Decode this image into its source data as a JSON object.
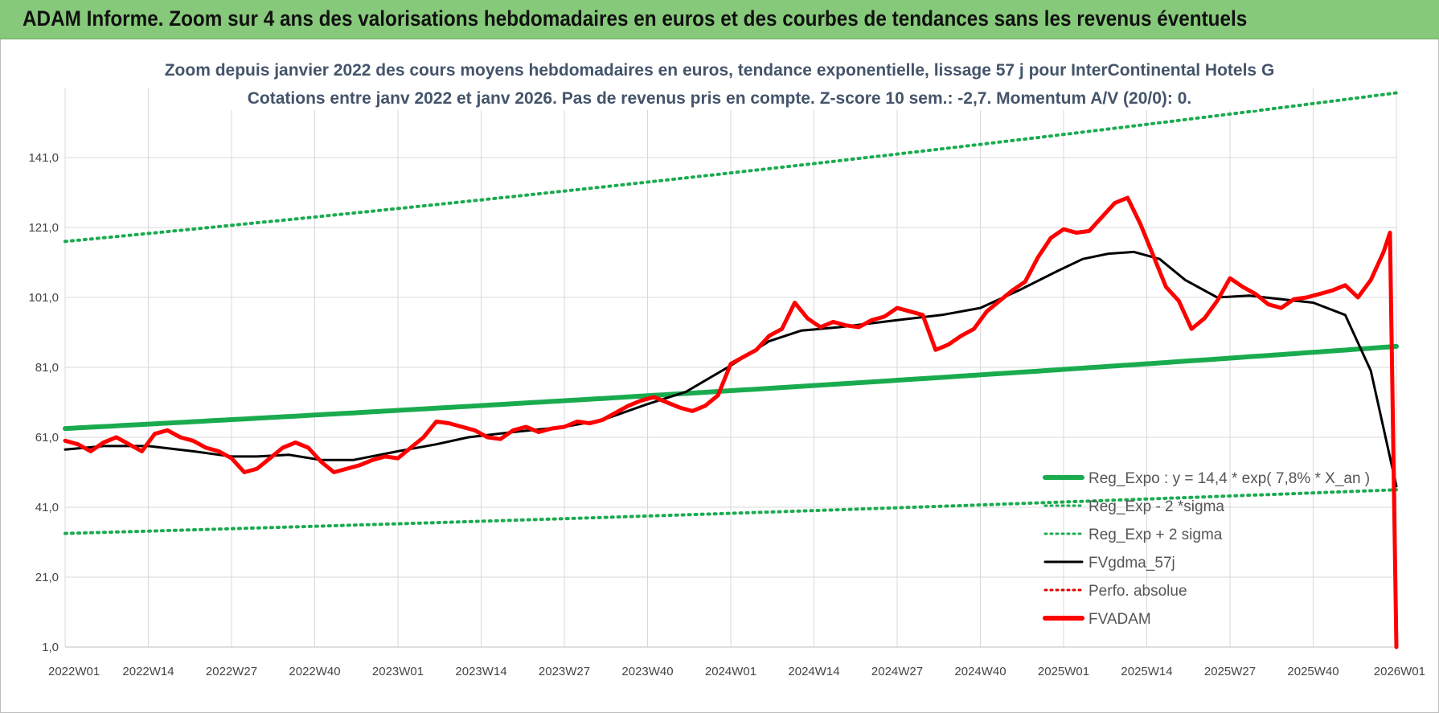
{
  "banner": {
    "title": "ADAM Informe. Zoom sur 4 ans des valorisations hebdomadaires en euros et des courbes de tendances sans les revenus éventuels"
  },
  "colors": {
    "banner_bg": "#86c97a",
    "regression": "#1aab4f",
    "band": "#1aab4f",
    "moving_average": "#000000",
    "perf": "#e00000",
    "fvadam": "#ff0000"
  },
  "chart_data": {
    "type": "line",
    "title_lines": [
      "Zoom depuis janvier 2022 des cours moyens hebdomadaires en euros, tendance exponentielle, lissage 57 j pour InterContinental Hotels G",
      "Cotations entre janv 2022 et janv 2026. Pas de revenus pris en compte. Z-score 10 sem.: -2,7. Momentum A/V (20/0): 0."
    ],
    "x_tick_labels": [
      "2022W01",
      "2022W14",
      "2022W27",
      "2022W40",
      "2023W01",
      "2023W14",
      "2023W27",
      "2023W40",
      "2024W01",
      "2024W14",
      "2024W27",
      "2024W40",
      "2025W01",
      "2025W14",
      "2025W27",
      "2025W40",
      "2026W01"
    ],
    "y_tick_labels": [
      "1,0",
      "21,0",
      "41,0",
      "61,0",
      "81,0",
      "101,0",
      "121,0",
      "141,0"
    ],
    "ylim": [
      1,
      161
    ],
    "y_ticks": [
      1,
      21,
      41,
      61,
      81,
      101,
      121,
      141
    ],
    "x_range_weeks": [
      0,
      208
    ],
    "grid": true,
    "legend_position": "bottom-right",
    "legend": [
      {
        "label": "Reg_Expo : y = 14,4 * exp( 7,8% *  X_an )",
        "style": "solid-thick",
        "color": "#1aab4f"
      },
      {
        "label": "Reg_Exp - 2 *sigma",
        "style": "dotted",
        "color": "#1aab4f"
      },
      {
        "label": "Reg_Exp + 2 sigma",
        "style": "dotted",
        "color": "#1aab4f"
      },
      {
        "label": "FVgdma_57j",
        "style": "solid",
        "color": "#000000"
      },
      {
        "label": "Perfo. absolue",
        "style": "dotted",
        "color": "#e00000"
      },
      {
        "label": "FVADAM",
        "style": "solid-thick",
        "color": "#ff0000"
      }
    ],
    "series": [
      {
        "name": "Reg_Expo : y = 14,4 * exp( 7,8% *  X_an )",
        "style": "solid-thick",
        "x": [
          0,
          208
        ],
        "y": [
          63.5,
          87.0
        ],
        "curve": "exponential"
      },
      {
        "name": "Reg_Exp - 2 *sigma",
        "style": "dotted",
        "x": [
          0,
          208
        ],
        "y": [
          33.5,
          46.0
        ],
        "curve": "exponential"
      },
      {
        "name": "Reg_Exp + 2 sigma",
        "style": "dotted",
        "x": [
          0,
          208
        ],
        "y": [
          117.0,
          159.5
        ],
        "curve": "exponential"
      },
      {
        "name": "FVgdma_57j",
        "style": "solid",
        "x": [
          0,
          6,
          13,
          20,
          26,
          30,
          35,
          40,
          45,
          52,
          58,
          63,
          70,
          78,
          84,
          91,
          97,
          104,
          110,
          115,
          121,
          130,
          137,
          143,
          149,
          155,
          159,
          163,
          167,
          171,
          175,
          180,
          185,
          190,
          195,
          200,
          204,
          208
        ],
        "y": [
          57.5,
          58.5,
          58.5,
          57.0,
          55.5,
          55.5,
          56.0,
          54.5,
          54.5,
          57.0,
          59.0,
          61.0,
          62.5,
          64.0,
          66.0,
          70.5,
          74.0,
          81.5,
          88.5,
          91.5,
          92.5,
          94.5,
          96.0,
          98.0,
          103.0,
          108.5,
          112.0,
          113.5,
          114.0,
          112.0,
          106.0,
          101.0,
          101.5,
          100.5,
          99.5,
          96.0,
          80.0,
          47.0
        ]
      },
      {
        "name": "FVADAM",
        "style": "solid-thick",
        "x": [
          0,
          2,
          4,
          6,
          8,
          10,
          12,
          14,
          16,
          18,
          20,
          22,
          24,
          26,
          28,
          30,
          32,
          34,
          36,
          38,
          40,
          42,
          44,
          46,
          48,
          50,
          52,
          54,
          56,
          58,
          60,
          62,
          64,
          66,
          68,
          70,
          72,
          74,
          76,
          78,
          80,
          82,
          84,
          86,
          88,
          90,
          92,
          94,
          96,
          98,
          100,
          102,
          104,
          106,
          108,
          110,
          112,
          114,
          116,
          118,
          120,
          122,
          124,
          126,
          128,
          130,
          132,
          134,
          136,
          138,
          140,
          142,
          144,
          146,
          148,
          150,
          152,
          154,
          156,
          158,
          160,
          162,
          164,
          166,
          168,
          170,
          172,
          174,
          176,
          178,
          180,
          182,
          184,
          186,
          188,
          190,
          192,
          194,
          196,
          198,
          200,
          202,
          204,
          206,
          207,
          208
        ],
        "y": [
          60.0,
          59.0,
          57.0,
          59.5,
          61.0,
          59.0,
          57.0,
          62.0,
          63.0,
          61.0,
          60.0,
          58.0,
          57.0,
          55.0,
          51.0,
          52.0,
          55.0,
          58.0,
          59.5,
          58.0,
          54.0,
          51.0,
          52.0,
          53.0,
          54.5,
          55.5,
          55.0,
          58.0,
          61.0,
          65.5,
          65.0,
          64.0,
          63.0,
          61.0,
          60.5,
          63.0,
          64.0,
          62.5,
          63.5,
          64.0,
          65.5,
          65.0,
          66.0,
          68.0,
          70.0,
          71.5,
          72.5,
          71.0,
          69.5,
          68.5,
          70.0,
          73.0,
          82.0,
          84.0,
          86.0,
          90.0,
          92.0,
          99.5,
          95.0,
          92.5,
          94.0,
          93.0,
          92.5,
          94.5,
          95.5,
          98.0,
          97.0,
          96.0,
          86.0,
          87.5,
          90.0,
          92.0,
          97.0,
          100.0,
          103.0,
          105.5,
          112.5,
          118.0,
          120.5,
          119.5,
          120.0,
          124.0,
          128.0,
          129.5,
          122.0,
          113.0,
          104.0,
          100.0,
          92.0,
          95.0,
          100.0,
          106.5,
          104.0,
          102.0,
          99.0,
          98.0,
          100.5,
          101.0,
          102.0,
          103.0,
          104.5,
          101.0,
          106.0,
          114.0,
          119.5,
          1.0
        ]
      }
    ]
  }
}
